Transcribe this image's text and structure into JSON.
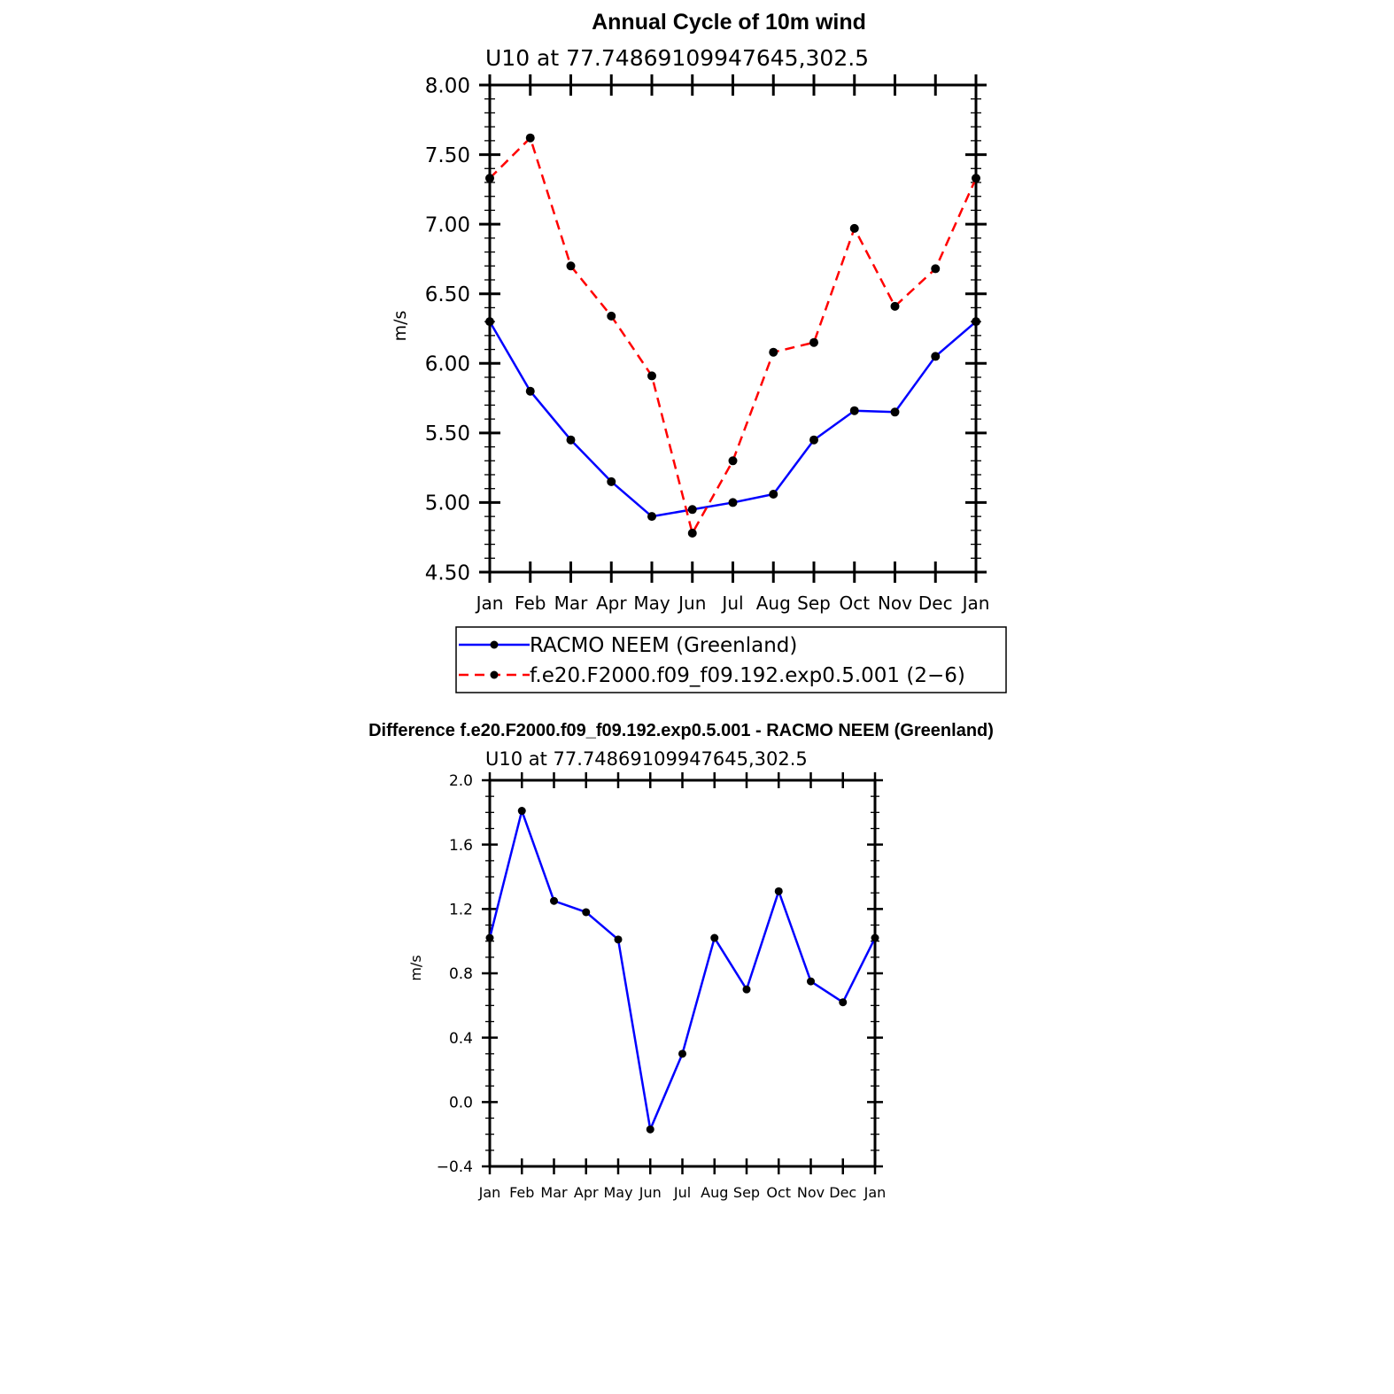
{
  "chart_data": [
    {
      "type": "line",
      "title": "Annual Cycle of 10m wind",
      "subtitle": "U10 at 77.74869109947645,302.5",
      "xlabel": "",
      "ylabel": "m/s",
      "categories": [
        "Jan",
        "Feb",
        "Mar",
        "Apr",
        "May",
        "Jun",
        "Jul",
        "Aug",
        "Sep",
        "Oct",
        "Nov",
        "Dec",
        "Jan"
      ],
      "ylim": [
        4.5,
        8.0
      ],
      "yticks": [
        4.5,
        5.0,
        5.5,
        6.0,
        6.5,
        7.0,
        7.5,
        8.0
      ],
      "ytick_labels": [
        "4.50",
        "5.00",
        "5.50",
        "6.00",
        "6.50",
        "7.00",
        "7.50",
        "8.00"
      ],
      "series": [
        {
          "name": "RACMO NEEM (Greenland)",
          "color": "#0000ff",
          "dash": "solid",
          "values": [
            6.3,
            5.8,
            5.45,
            5.15,
            4.9,
            4.95,
            5.0,
            5.06,
            5.45,
            5.66,
            5.65,
            6.05,
            6.3
          ]
        },
        {
          "name": "f.e20.F2000.f09_f09.192.exp0.5.001 (2−6)",
          "color": "#ff0000",
          "dash": "dashed",
          "values": [
            7.33,
            7.62,
            6.7,
            6.34,
            5.91,
            4.78,
            5.3,
            6.08,
            6.15,
            6.97,
            6.41,
            6.68,
            7.33
          ]
        }
      ],
      "legend": "below"
    },
    {
      "type": "line",
      "title": "Difference f.e20.F2000.f09_f09.192.exp0.5.001 - RACMO NEEM (Greenland)",
      "subtitle": "U10 at 77.74869109947645,302.5",
      "xlabel": "",
      "ylabel": "m/s",
      "categories": [
        "Jan",
        "Feb",
        "Mar",
        "Apr",
        "May",
        "Jun",
        "Jul",
        "Aug",
        "Sep",
        "Oct",
        "Nov",
        "Dec",
        "Jan"
      ],
      "ylim": [
        -0.4,
        2.0
      ],
      "yticks": [
        -0.4,
        0.0,
        0.4,
        0.8,
        1.2,
        1.6,
        2.0
      ],
      "ytick_labels": [
        "−0.4",
        "0.0",
        "0.4",
        "0.8",
        "1.2",
        "1.6",
        "2.0"
      ],
      "series": [
        {
          "name": "Difference",
          "color": "#0000ff",
          "dash": "solid",
          "values": [
            1.02,
            1.81,
            1.25,
            1.18,
            1.01,
            -0.17,
            0.3,
            1.02,
            0.7,
            1.31,
            0.75,
            0.62,
            1.02
          ]
        }
      ]
    }
  ]
}
